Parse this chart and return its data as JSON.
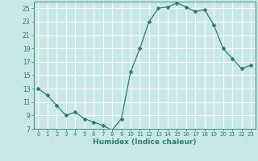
{
  "x": [
    0,
    1,
    2,
    3,
    4,
    5,
    6,
    7,
    8,
    9,
    10,
    11,
    12,
    13,
    14,
    15,
    16,
    17,
    18,
    19,
    20,
    21,
    22,
    23
  ],
  "y": [
    13.0,
    12.0,
    10.5,
    9.0,
    9.5,
    8.5,
    8.0,
    7.5,
    6.8,
    8.5,
    15.5,
    19.0,
    23.0,
    25.0,
    25.2,
    25.8,
    25.2,
    24.5,
    24.8,
    22.5,
    19.0,
    17.5,
    16.0,
    16.5
  ],
  "xlabel": "Humidex (Indice chaleur)",
  "ylim": [
    7,
    26
  ],
  "xlim": [
    -0.5,
    23.5
  ],
  "yticks": [
    7,
    9,
    11,
    13,
    15,
    17,
    19,
    21,
    23,
    25
  ],
  "xticks": [
    0,
    1,
    2,
    3,
    4,
    5,
    6,
    7,
    8,
    9,
    10,
    11,
    12,
    13,
    14,
    15,
    16,
    17,
    18,
    19,
    20,
    21,
    22,
    23
  ],
  "line_color": "#2e7d6e",
  "marker": "D",
  "marker_size": 2.5,
  "bg_color": "#c8e8e8",
  "grid_color": "#ffffff",
  "tick_color": "#2e7d6e",
  "xlabel_fontsize": 6.5,
  "ytick_fontsize": 5.5,
  "xtick_fontsize": 5.0
}
